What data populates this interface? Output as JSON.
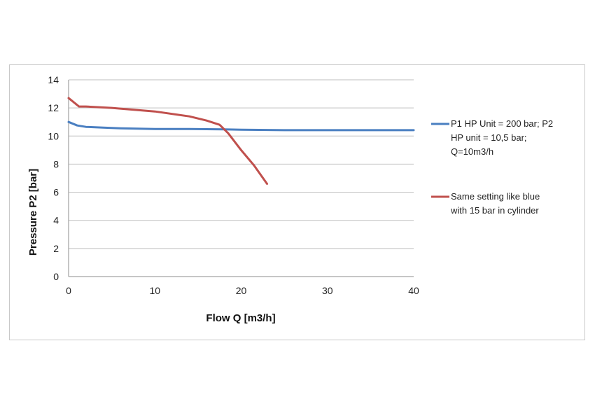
{
  "chart_data": {
    "type": "line",
    "title": "",
    "xlabel": "Flow Q [m3/h]",
    "ylabel": "Pressure P2 [bar]",
    "xlim": [
      0,
      40
    ],
    "ylim": [
      0,
      14
    ],
    "x_ticks": [
      "0",
      "10",
      "20",
      "30",
      "40"
    ],
    "y_ticks": [
      "0",
      "2",
      "4",
      "6",
      "8",
      "10",
      "12",
      "14"
    ],
    "grid": "horizontal",
    "legend_position": "right",
    "series": [
      {
        "name_lines": [
          "P1 HP Unit = 200 bar; P2",
          "HP unit = 10,5 bar;",
          "Q=10m3/h"
        ],
        "color": "#4a7fc1",
        "x": [
          0,
          1,
          2,
          4,
          6,
          10,
          14,
          18,
          20,
          25,
          30,
          35,
          40
        ],
        "y": [
          11.0,
          10.75,
          10.65,
          10.6,
          10.55,
          10.5,
          10.5,
          10.48,
          10.45,
          10.42,
          10.42,
          10.42,
          10.42
        ]
      },
      {
        "name_lines": [
          "Same setting like blue",
          "with 15 bar in cylinder"
        ],
        "color": "#c0504d",
        "x": [
          0,
          1.2,
          2,
          5,
          10,
          14,
          16,
          17.5,
          18.5,
          20,
          21.5,
          23
        ],
        "y": [
          12.7,
          12.1,
          12.1,
          12.0,
          11.75,
          11.4,
          11.1,
          10.8,
          10.2,
          9.0,
          7.9,
          6.6
        ]
      }
    ]
  }
}
